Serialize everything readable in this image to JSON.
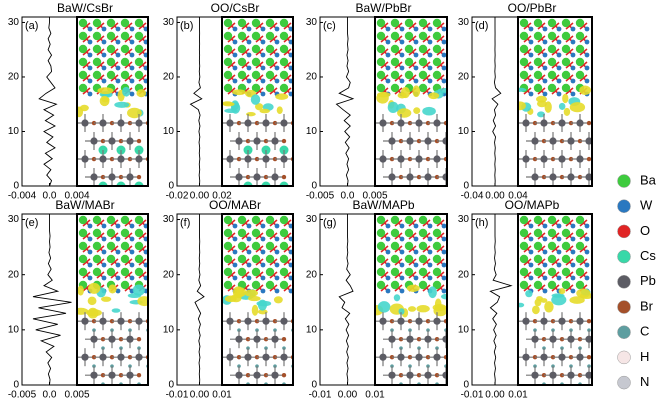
{
  "chart_data": [
    {
      "type": "line",
      "orientation": "vertical",
      "title": "BaW/CsBr",
      "label": "(a)",
      "xlim": [
        -0.004,
        0.004
      ],
      "xticks": [
        -0.004,
        {
          "value": 0,
          "label": "0.0"
        },
        0.004
      ],
      "ylim": [
        0,
        31
      ],
      "yticks": [
        0,
        10,
        20,
        30
      ],
      "y": [
        0,
        1,
        2,
        3,
        4,
        5,
        6,
        7,
        8,
        9,
        10,
        11,
        12,
        13,
        14,
        15,
        16,
        17,
        18,
        19,
        20,
        21,
        22,
        23,
        24,
        25,
        26,
        27,
        28,
        29,
        30,
        31
      ],
      "color": "#000000",
      "values": [
        0,
        0.0003,
        -0.0004,
        0.0002,
        -0.0008,
        0.0004,
        -0.0006,
        0.0008,
        -0.0004,
        0.0005,
        -0.0008,
        0.0008,
        -0.0006,
        0.0006,
        -0.0008,
        0.001,
        -0.0015,
        -0.0005,
        0.0008,
        0.0002,
        -0.0004,
        0.0003,
        0.0002,
        -0.0002,
        0.0003,
        -0.0002,
        0.0001,
        -0.0002,
        0.0002,
        -0.0001,
        0,
        0
      ]
    },
    {
      "type": "line",
      "orientation": "vertical",
      "title": "OO/CsBr",
      "label": "(b)",
      "xlim": [
        -0.02,
        0.02
      ],
      "xticks": [
        -0.02,
        {
          "value": 0,
          "label": "0.00"
        },
        0.02
      ],
      "ylim": [
        0,
        31
      ],
      "yticks": [
        0,
        10,
        20,
        30
      ],
      "y": [
        0,
        1,
        2,
        3,
        4,
        5,
        6,
        7,
        8,
        9,
        10,
        11,
        12,
        13,
        14,
        15,
        16,
        17,
        18,
        19,
        20,
        21,
        22,
        23,
        24,
        25,
        26,
        27,
        28,
        29,
        30,
        31
      ],
      "color": "#000000",
      "values": [
        0,
        0.0002,
        -0.0003,
        0.0002,
        -0.0002,
        0.0003,
        -0.0002,
        0.0002,
        -0.0004,
        0.0003,
        -0.0005,
        0.0004,
        -0.0006,
        0.0005,
        -0.001,
        -0.008,
        0.002,
        -0.005,
        0.0008,
        -0.0005,
        0.0003,
        -0.0002,
        0.0002,
        -0.0001,
        0.0001,
        -0.0001,
        0.0001,
        0,
        0.0001,
        0,
        0,
        0
      ]
    },
    {
      "type": "line",
      "orientation": "vertical",
      "title": "BaW/PbBr",
      "label": "(c)",
      "xlim": [
        -0.005,
        0.005
      ],
      "xticks": [
        -0.005,
        {
          "value": 0,
          "label": "0.0"
        },
        0.005
      ],
      "ylim": [
        0,
        31
      ],
      "yticks": [
        0,
        10,
        20,
        30
      ],
      "y": [
        0,
        1,
        2,
        3,
        4,
        5,
        6,
        7,
        8,
        9,
        10,
        11,
        12,
        13,
        14,
        15,
        16,
        17,
        18,
        19,
        20,
        21,
        22,
        23,
        24,
        25,
        26,
        27,
        28,
        29,
        30,
        31
      ],
      "color": "#000000",
      "values": [
        0,
        0.0001,
        -0.0002,
        0.0002,
        -0.0001,
        0.0002,
        -0.0003,
        0.0003,
        -0.0004,
        0.0004,
        -0.0005,
        0.0005,
        -0.0006,
        0.0005,
        -0.0008,
        -0.002,
        0.001,
        -0.0015,
        0.0002,
        0.0005,
        -0.0002,
        0.0002,
        -0.0001,
        0.0001,
        -0.0001,
        0.0001,
        0,
        0.0001,
        0,
        0,
        0,
        0
      ]
    },
    {
      "type": "line",
      "orientation": "vertical",
      "title": "OO/PbBr",
      "label": "(d)",
      "xlim": [
        -0.04,
        0.04
      ],
      "xticks": [
        -0.04,
        {
          "value": 0,
          "label": "0.00"
        },
        0.04
      ],
      "ylim": [
        0,
        31
      ],
      "yticks": [
        0,
        10,
        20,
        30
      ],
      "y": [
        0,
        1,
        2,
        3,
        4,
        5,
        6,
        7,
        8,
        9,
        10,
        11,
        12,
        13,
        14,
        15,
        16,
        17,
        18,
        19,
        20,
        21,
        22,
        23,
        24,
        25,
        26,
        27,
        28,
        29,
        30,
        31
      ],
      "color": "#000000",
      "values": [
        0,
        0.0003,
        -0.0003,
        0.0004,
        -0.0003,
        0.0005,
        -0.0004,
        0.0005,
        -0.0008,
        0.001,
        -0.004,
        0.001,
        -0.003,
        0.001,
        -0.001,
        0.005,
        -0.005,
        0.01,
        0.001,
        -0.001,
        0.0005,
        -0.0003,
        0.0003,
        -0.0002,
        0.0002,
        -0.0001,
        0.0001,
        0,
        0.0001,
        0,
        0,
        0
      ]
    },
    {
      "type": "line",
      "orientation": "vertical",
      "title": "BaW/MABr",
      "label": "(e)",
      "xlim": [
        -0.005,
        0.005
      ],
      "xticks": [
        -0.005,
        {
          "value": 0,
          "label": "0.0"
        },
        0.005
      ],
      "ylim": [
        0,
        31
      ],
      "yticks": [
        0,
        10,
        20,
        30
      ],
      "y": [
        0,
        1,
        2,
        3,
        4,
        5,
        6,
        7,
        8,
        9,
        10,
        11,
        12,
        13,
        14,
        15,
        16,
        17,
        18,
        19,
        20,
        21,
        22,
        23,
        24,
        25,
        26,
        27,
        28,
        29,
        30,
        31
      ],
      "color": "#000000",
      "values": [
        0,
        0.0001,
        -0.0002,
        0.0002,
        -0.0003,
        0.0004,
        -0.0006,
        0.0008,
        -0.0015,
        0.002,
        -0.0025,
        0.0015,
        -0.003,
        0.003,
        -0.002,
        0.004,
        -0.003,
        0.0015,
        -0.001,
        0.0005,
        -0.0003,
        0.0003,
        -0.0002,
        0.0002,
        -0.0001,
        0.0001,
        0,
        0.0001,
        0,
        0,
        0,
        0
      ]
    },
    {
      "type": "line",
      "orientation": "vertical",
      "title": "OO/MABr",
      "label": "(f)",
      "xlim": [
        -0.01,
        0.01
      ],
      "xticks": [
        -0.01,
        {
          "value": 0,
          "label": "0.00"
        },
        0.01
      ],
      "ylim": [
        0,
        31
      ],
      "yticks": [
        0,
        10,
        20,
        30
      ],
      "y": [
        0,
        1,
        2,
        3,
        4,
        5,
        6,
        7,
        8,
        9,
        10,
        11,
        12,
        13,
        14,
        15,
        16,
        17,
        18,
        19,
        20,
        21,
        22,
        23,
        24,
        25,
        26,
        27,
        28,
        29,
        30,
        31
      ],
      "color": "#000000",
      "values": [
        0,
        0.0001,
        -0.0001,
        0.0001,
        -0.0002,
        0.0002,
        -0.0002,
        0.0002,
        -0.0003,
        0.0003,
        -0.0003,
        0.0004,
        -0.0005,
        0.0005,
        -0.0008,
        -0.002,
        0.002,
        -0.001,
        0.0005,
        -0.0003,
        0.0002,
        -0.0002,
        0.0001,
        -0.0001,
        0.0001,
        0,
        0.0001,
        0,
        0,
        0,
        0,
        0
      ]
    },
    {
      "type": "line",
      "orientation": "vertical",
      "title": "BaW/MAPb",
      "label": "(g)",
      "xlim": [
        -0.01,
        0.01
      ],
      "xticks": [
        -0.01,
        {
          "value": 0,
          "label": "0.00"
        },
        0.01
      ],
      "ylim": [
        0,
        31
      ],
      "yticks": [
        0,
        10,
        20,
        30
      ],
      "y": [
        0,
        1,
        2,
        3,
        4,
        5,
        6,
        7,
        8,
        9,
        10,
        11,
        12,
        13,
        14,
        15,
        16,
        17,
        18,
        19,
        20,
        21,
        22,
        23,
        24,
        25,
        26,
        27,
        28,
        29,
        30,
        31
      ],
      "color": "#000000",
      "values": [
        0,
        0.0001,
        -0.0002,
        0.0002,
        -0.0002,
        0.0003,
        -0.0003,
        0.0003,
        -0.0004,
        0.0004,
        -0.0005,
        0.0005,
        -0.0008,
        0.0008,
        -0.002,
        -0.001,
        -0.003,
        0.002,
        0.001,
        -0.0005,
        0.001,
        -0.0003,
        0.0002,
        -0.0002,
        0.0001,
        -0.0001,
        0.0001,
        0,
        0,
        0,
        0,
        0
      ]
    },
    {
      "type": "line",
      "orientation": "vertical",
      "title": "OO/MAPb",
      "label": "(h)",
      "xlim": [
        -0.01,
        0.01
      ],
      "xticks": [
        -0.01,
        {
          "value": 0,
          "label": "0.00"
        },
        0.01
      ],
      "ylim": [
        0,
        31
      ],
      "yticks": [
        0,
        10,
        20,
        30
      ],
      "y": [
        0,
        1,
        2,
        3,
        4,
        5,
        6,
        7,
        8,
        9,
        10,
        11,
        12,
        13,
        14,
        15,
        16,
        17,
        18,
        19,
        20,
        21,
        22,
        23,
        24,
        25,
        26,
        27,
        28,
        29,
        30,
        31
      ],
      "color": "#000000",
      "values": [
        0,
        0.0001,
        -0.0002,
        0.0002,
        -0.0002,
        0.0003,
        -0.0003,
        0.0004,
        -0.0005,
        0.0005,
        -0.0006,
        0.0006,
        -0.001,
        0.0008,
        -0.002,
        0.001,
        0.002,
        -0.002,
        0.007,
        -0.0008,
        0.0005,
        -0.0003,
        0.0002,
        -0.0002,
        0.0001,
        -0.0001,
        0.0001,
        0,
        0,
        0,
        0,
        0
      ]
    }
  ],
  "legend": [
    {
      "name": "Ba",
      "color": "#3ecb3e"
    },
    {
      "name": "W",
      "color": "#2a78c0"
    },
    {
      "name": "O",
      "color": "#e02424"
    },
    {
      "name": "Cs",
      "color": "#38d8a8"
    },
    {
      "name": "Pb",
      "color": "#5c5c64"
    },
    {
      "name": "Br",
      "color": "#a4502a"
    },
    {
      "name": "C",
      "color": "#5e9ea0"
    },
    {
      "name": "H",
      "color": "#f6e6e6"
    },
    {
      "name": "N",
      "color": "#c6c8d0"
    }
  ]
}
